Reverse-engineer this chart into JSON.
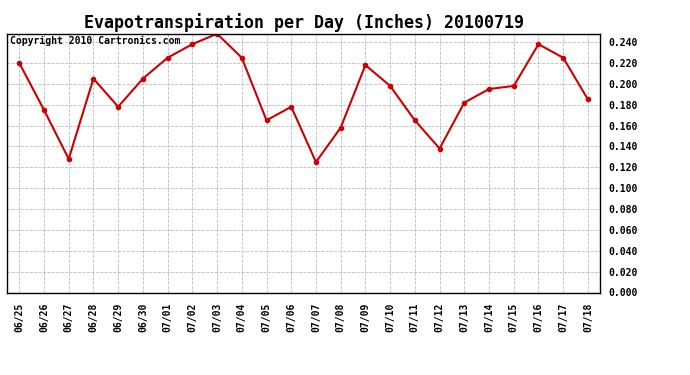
{
  "title": "Evapotranspiration per Day (Inches) 20100719",
  "copyright_text": "Copyright 2010 Cartronics.com",
  "x_labels": [
    "06/25",
    "06/26",
    "06/27",
    "06/28",
    "06/29",
    "06/30",
    "07/01",
    "07/02",
    "07/03",
    "07/04",
    "07/05",
    "07/06",
    "07/07",
    "07/08",
    "07/09",
    "07/10",
    "07/11",
    "07/12",
    "07/13",
    "07/14",
    "07/15",
    "07/16",
    "07/17",
    "07/18"
  ],
  "y_values": [
    0.22,
    0.175,
    0.128,
    0.205,
    0.178,
    0.205,
    0.225,
    0.238,
    0.248,
    0.225,
    0.165,
    0.178,
    0.125,
    0.158,
    0.218,
    0.198,
    0.165,
    0.138,
    0.182,
    0.195,
    0.198,
    0.238,
    0.225,
    0.185
  ],
  "line_color": "#cc0000",
  "marker": "o",
  "marker_size": 3,
  "marker_color": "#cc0000",
  "background_color": "#ffffff",
  "grid_color": "#bbbbbb",
  "ylim": [
    0.0,
    0.248
  ],
  "ytick_min": 0.0,
  "ytick_max": 0.24,
  "ytick_step": 0.02,
  "title_fontsize": 12,
  "copyright_fontsize": 7,
  "tick_fontsize": 7,
  "line_width": 1.5
}
